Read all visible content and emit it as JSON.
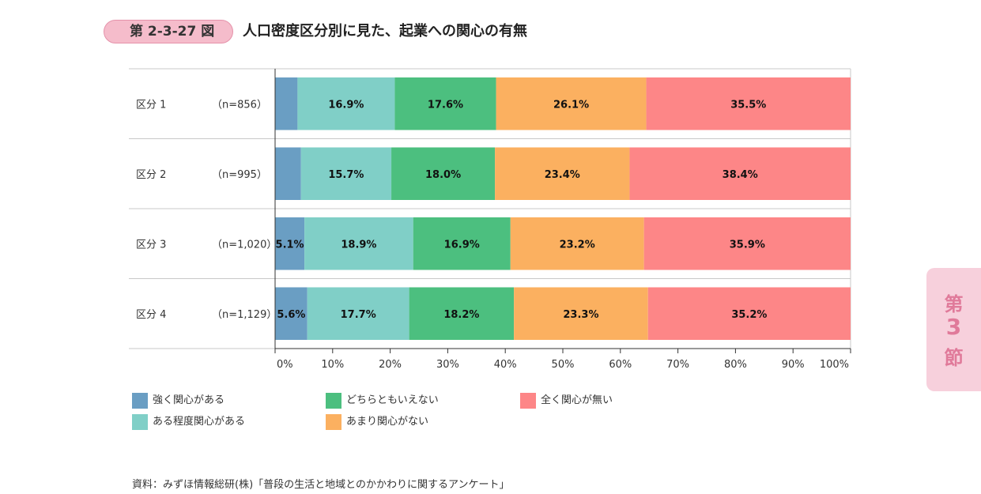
{
  "figure": {
    "number": "第 2-3-27 図",
    "title": "人口密度区分別に見た、起業への関心の有無"
  },
  "chart_data": {
    "type": "bar",
    "orientation": "horizontal",
    "stacked": true,
    "categories": [
      "区分 1",
      "区分 2",
      "区分 3",
      "区分 4"
    ],
    "sample_sizes": [
      "（n=856）",
      "（n=995）",
      "（n=1,020）",
      "（n=1,129）"
    ],
    "series": [
      {
        "name": "強く関心がある",
        "color": "#6a9ec3",
        "values": [
          3.9,
          4.5,
          5.1,
          5.6
        ],
        "labels": [
          "",
          "",
          "5.1%",
          "5.6%"
        ]
      },
      {
        "name": "ある程度関心がある",
        "color": "#80cfc7",
        "values": [
          16.9,
          15.7,
          18.9,
          17.7
        ],
        "labels": [
          "16.9%",
          "15.7%",
          "18.9%",
          "17.7%"
        ]
      },
      {
        "name": "どちらともいえない",
        "color": "#4cbf7f",
        "values": [
          17.6,
          18.0,
          16.9,
          18.2
        ],
        "labels": [
          "17.6%",
          "18.0%",
          "16.9%",
          "18.2%"
        ]
      },
      {
        "name": "あまり関心がない",
        "color": "#fbb060",
        "values": [
          26.1,
          23.4,
          23.2,
          23.3
        ],
        "labels": [
          "26.1%",
          "23.4%",
          "23.2%",
          "23.3%"
        ]
      },
      {
        "name": "全く関心が無い",
        "color": "#fd8687",
        "values": [
          35.5,
          38.4,
          35.9,
          35.2
        ],
        "labels": [
          "35.5%",
          "38.4%",
          "35.9%",
          "35.2%"
        ]
      }
    ],
    "xlim": [
      0,
      100
    ],
    "xticks": [
      "0%",
      "10%",
      "20%",
      "30%",
      "40%",
      "50%",
      "60%",
      "70%",
      "80%",
      "90%",
      "100%"
    ],
    "legend_position": "bottom"
  },
  "legend": [
    {
      "name": "強く関心がある",
      "color": "#6a9ec3"
    },
    {
      "name": "どちらともいえない",
      "color": "#4cbf7f"
    },
    {
      "name": "全く関心が無い",
      "color": "#fd8687"
    },
    {
      "name": "ある程度関心がある",
      "color": "#80cfc7"
    },
    {
      "name": "あまり関心がない",
      "color": "#fbb060"
    }
  ],
  "source": "資料：みずほ情報総研(株)「普段の生活と地域とのかかわりに関するアンケート」",
  "section_tab": {
    "line1": "第",
    "line2": "3",
    "line3": "節"
  }
}
